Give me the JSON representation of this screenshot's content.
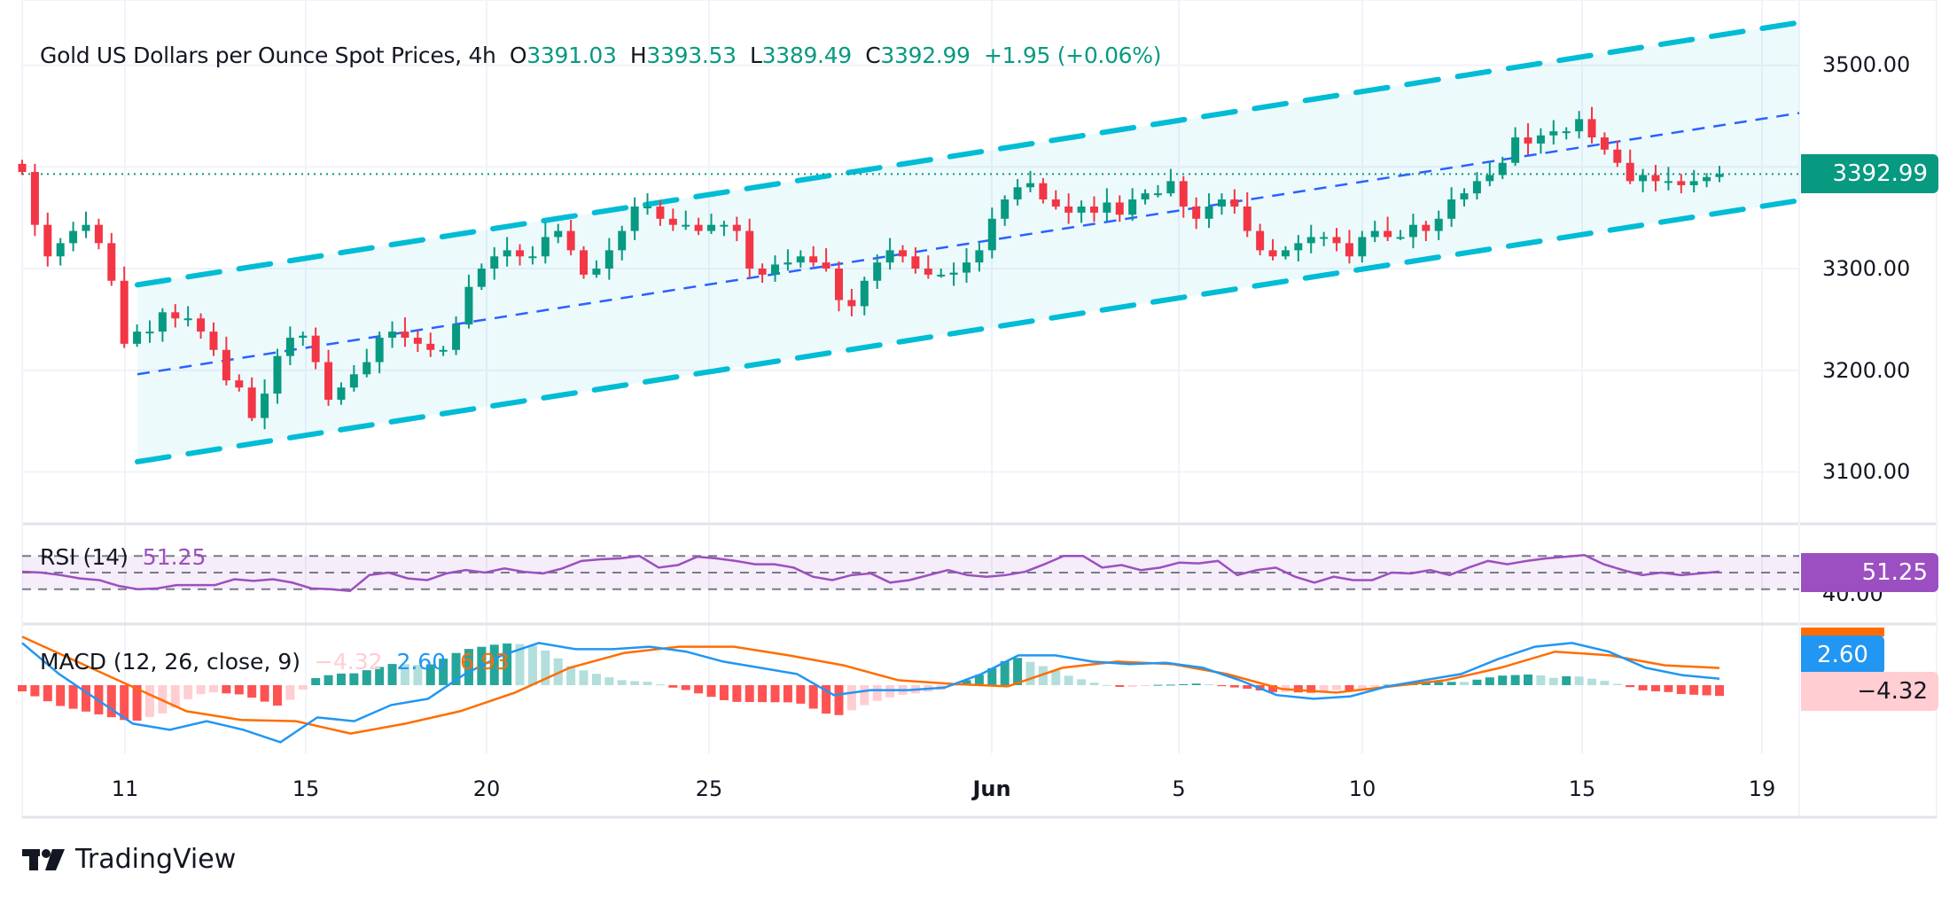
{
  "header": {
    "title": "Gold US Dollars per Ounce Spot Prices, 4h",
    "o_label": "O",
    "o": "3391.03",
    "h_label": "H",
    "h": "3393.53",
    "l_label": "L",
    "l": "3389.49",
    "c_label": "C",
    "c": "3392.99",
    "change": "+1.95 (+0.06%)"
  },
  "price_axis": [
    "3500.00",
    "3300.00",
    "3200.00",
    "3100.00"
  ],
  "last_price_badge": "3392.99",
  "rsi": {
    "label": "RSI (14)",
    "value": "51.25",
    "axis_label": "40.00",
    "badge": "51.25"
  },
  "macd": {
    "label": "MACD (12, 26, close, 9)",
    "hist": "−4.32",
    "macd": "2.60",
    "signal": "6.93",
    "badge_macd": "2.60",
    "badge_hist": "−4.32"
  },
  "time_axis": [
    "11",
    "15",
    "20",
    "25",
    "Jun",
    "5",
    "10",
    "15",
    "19"
  ],
  "brand": "TradingView",
  "colors": {
    "up": "#089981",
    "down": "#f23645",
    "channel": "#00bcd4",
    "midline": "#2962ff",
    "rsi": "#9c4fc0",
    "macd": "#2196f3",
    "signal": "#ff6d00"
  },
  "chart_data": [
    {
      "type": "candlestick",
      "title": "Gold US Dollars per Ounce Spot Prices, 4h",
      "ylim": [
        3050,
        3550
      ],
      "yticks": [
        3100,
        3200,
        3300,
        3500
      ],
      "last": 3392.99,
      "closes": [
        3395,
        3343,
        3312,
        3325,
        3337,
        3343,
        3325,
        3288,
        3226,
        3238,
        3238,
        3257,
        3251,
        3251,
        3238,
        3220,
        3190,
        3183,
        3153,
        3177,
        3214,
        3232,
        3234,
        3208,
        3171,
        3183,
        3196,
        3208,
        3232,
        3238,
        3232,
        3226,
        3220,
        3220,
        3245,
        3282,
        3300,
        3312,
        3318,
        3312,
        3312,
        3331,
        3337,
        3318,
        3294,
        3300,
        3318,
        3337,
        3361,
        3361,
        3349,
        3343,
        3343,
        3337,
        3343,
        3343,
        3337,
        3300,
        3294,
        3304,
        3306,
        3312,
        3306,
        3300,
        3269,
        3263,
        3288,
        3306,
        3318,
        3312,
        3300,
        3294,
        3294,
        3296,
        3306,
        3318,
        3349,
        3368,
        3380,
        3384,
        3368,
        3361,
        3355,
        3361,
        3355,
        3365,
        3353,
        3368,
        3374,
        3374,
        3386,
        3361,
        3349,
        3361,
        3368,
        3361,
        3337,
        3318,
        3312,
        3318,
        3325,
        3331,
        3331,
        3325,
        3312,
        3331,
        3337,
        3331,
        3331,
        3343,
        3337,
        3349,
        3368,
        3374,
        3386,
        3392,
        3404,
        3429,
        3423,
        3431,
        3435,
        3435,
        3447,
        3429,
        3417,
        3404,
        3386,
        3392,
        3386,
        3386,
        3382,
        3386,
        3390,
        3392.99
      ],
      "channel": {
        "upper": [
          3284,
          3542
        ],
        "middle": [
          3196,
          3453
        ],
        "lower": [
          3110,
          3367
        ]
      }
    },
    {
      "type": "line",
      "title": "RSI (14)",
      "ylim": [
        20,
        80
      ],
      "bands": [
        30,
        50,
        70
      ],
      "values": [
        51,
        50,
        47,
        43,
        41,
        34,
        30,
        31,
        35,
        35,
        35,
        42,
        40,
        42,
        38,
        31,
        30,
        28,
        47,
        50,
        43,
        41,
        49,
        53,
        50,
        55,
        51,
        49,
        55,
        64,
        66,
        67,
        70,
        56,
        59,
        69,
        67,
        64,
        60,
        60,
        56,
        45,
        41,
        47,
        49,
        38,
        41,
        47,
        53,
        47,
        45,
        47,
        51,
        60,
        70,
        70,
        56,
        59,
        53,
        56,
        62,
        61,
        64,
        47,
        53,
        56,
        45,
        38,
        45,
        41,
        41,
        50,
        49,
        53,
        47,
        56,
        64,
        60,
        64,
        67,
        69,
        71,
        60,
        53,
        47,
        50,
        47,
        49,
        51.25
      ]
    },
    {
      "type": "line",
      "title": "MACD (12, 26, close, 9)",
      "series": [
        {
          "name": "MACD",
          "values": [
            17,
            4.5,
            -5.5,
            -15.5,
            -18,
            -14.5,
            -18,
            -23,
            -13,
            -14.5,
            -8,
            -5.5,
            4.5,
            12,
            17,
            14.5,
            14.5,
            15.5,
            13.5,
            9.5,
            7,
            4.5,
            -4,
            -2,
            -2,
            -1,
            4.5,
            12,
            12,
            9.5,
            8.5,
            9,
            7,
            2,
            -4,
            -5.5,
            -4.5,
            -0.5,
            2,
            4.5,
            10.5,
            15.5,
            17,
            13.5,
            7,
            4,
            2.6
          ]
        },
        {
          "name": "Signal",
          "values": [
            19.5,
            9.5,
            -0.5,
            -10.5,
            -14,
            -14.5,
            -19.5,
            -15.5,
            -10.5,
            -3,
            7,
            13,
            15.5,
            15.5,
            12,
            8,
            2,
            0.5,
            -0.5,
            7,
            9.5,
            8.5,
            4.5,
            -1.5,
            -3,
            -0.5,
            2,
            7,
            13.5,
            12,
            8,
            6.93
          ]
        }
      ]
    }
  ]
}
